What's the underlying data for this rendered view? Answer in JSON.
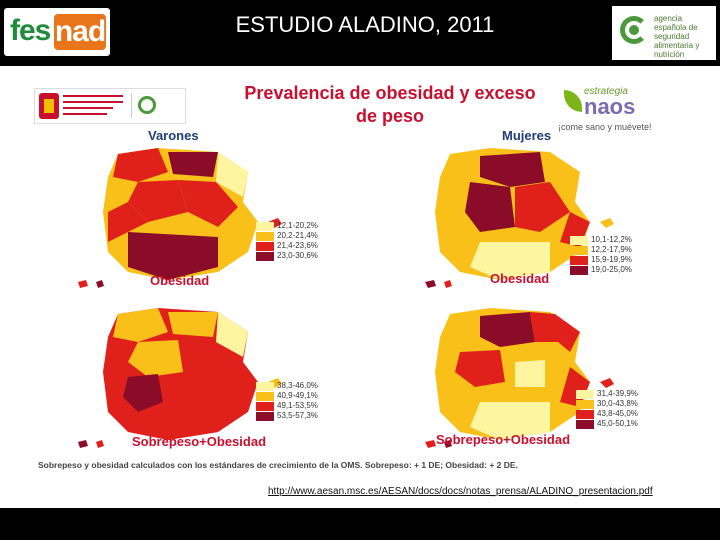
{
  "header": {
    "title": "ESTUDIO ALADINO, 2011",
    "left_logo": {
      "part1": "fes",
      "part2": "nad"
    },
    "right_logo_text": "agencia española de seguridad alimentaria y nutrición"
  },
  "slide": {
    "title_line1": "Prevalencia de obesidad y exceso",
    "title_line2": "de peso",
    "naos_small": "estrategia",
    "naos_big": "naos",
    "naos_tagline": "¡come sano y muévete!",
    "labels": {
      "male": "Varones",
      "female": "Mujeres"
    },
    "panels": [
      {
        "title": "Obesidad",
        "legend": [
          {
            "label": "12,1-20,2%",
            "color": "#fff5a0"
          },
          {
            "label": "20,2-21,4%",
            "color": "#f9c01a"
          },
          {
            "label": "21,4-23,6%",
            "color": "#e0201a"
          },
          {
            "label": "23,0-30,6%",
            "color": "#8a0c28"
          }
        ]
      },
      {
        "title": "Obesidad",
        "legend": [
          {
            "label": "10,1-12,2%",
            "color": "#fff5a0"
          },
          {
            "label": "12,2-17,9%",
            "color": "#f9c01a"
          },
          {
            "label": "15,9-19,9%",
            "color": "#e0201a"
          },
          {
            "label": "19,0-25,0%",
            "color": "#8a0c28"
          }
        ]
      },
      {
        "title": "Sobrepeso+Obesidad",
        "legend": [
          {
            "label": "38,3-46,0%",
            "color": "#fff5a0"
          },
          {
            "label": "40,9-49,1%",
            "color": "#f9c01a"
          },
          {
            "label": "49,1-53,5%",
            "color": "#e0201a"
          },
          {
            "label": "53,5-57,3%",
            "color": "#8a0c28"
          }
        ]
      },
      {
        "title": "Sobrepeso+Obesidad",
        "legend": [
          {
            "label": "31,4-39,9%",
            "color": "#fff5a0"
          },
          {
            "label": "30,0-43,8%",
            "color": "#f9c01a"
          },
          {
            "label": "43,8-45,0%",
            "color": "#e0201a"
          },
          {
            "label": "45,0-50,1%",
            "color": "#8a0c28"
          }
        ]
      }
    ],
    "footnote": "Sobrepeso y obesidad calculados con los estándares de crecimiento de la OMS. Sobrepeso: + 1 DE; Obesidad: + 2 DE."
  },
  "source_url": "http://www.aesan.msc.es/AESAN/docs/docs/notas_prensa/ALADINO_presentacion.pdf"
}
